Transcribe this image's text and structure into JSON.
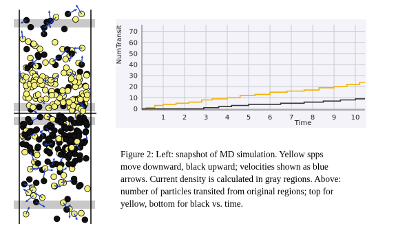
{
  "figure": {
    "caption_lines": [
      "Figure 2:  Left: snapshot of MD simulation. Yellow spps",
      "move downward, black upward; velocities shown as blue",
      "arrows. Current density is calculated in gray regions. Above:",
      "number of particles transited from original regions; top for",
      "yellow, bottom for black vs. time."
    ]
  },
  "chart_data": {
    "type": "line",
    "x_label": "Time",
    "y_label": "NumTransit",
    "xlim": [
      0,
      10.45
    ],
    "ylim": [
      -1,
      76
    ],
    "xticks": [
      1,
      2,
      3,
      4,
      5,
      6,
      7,
      8,
      9,
      10
    ],
    "yticks": [
      0,
      10,
      20,
      30,
      40,
      50,
      60,
      70
    ],
    "grid": true,
    "series": [
      {
        "color": "#f2b200",
        "x": [
          0,
          0.2,
          0.2,
          0.6,
          0.6,
          1,
          1,
          1.6,
          1.6,
          2.2,
          2.2,
          2.8,
          2.8,
          3.3,
          3.3,
          4,
          4,
          4.6,
          4.6,
          5.3,
          5.3,
          6,
          6,
          6.8,
          6.8,
          7.6,
          7.6,
          8.3,
          8.3,
          9,
          9,
          9.6,
          9.6,
          10.2,
          10.2,
          10.45
        ],
        "values": [
          0,
          0,
          1,
          1,
          3,
          3,
          4,
          4,
          5,
          5,
          6,
          6,
          8,
          8,
          9,
          9,
          10,
          10,
          12,
          12,
          13,
          13,
          15,
          15,
          16,
          16,
          17,
          17,
          19,
          19,
          20,
          20,
          22,
          22,
          24,
          24
        ]
      },
      {
        "color": "#333333",
        "x": [
          0,
          2.9,
          2.9,
          3.6,
          3.6,
          4.2,
          4.2,
          5,
          5,
          6.5,
          6.5,
          7.6,
          7.6,
          8.5,
          8.5,
          9.3,
          9.3,
          10,
          10,
          10.45
        ],
        "values": [
          0,
          0,
          1,
          1,
          2,
          2,
          3,
          3,
          4,
          4,
          5,
          5,
          6,
          6,
          7,
          7,
          8,
          8,
          9,
          9
        ]
      }
    ]
  }
}
